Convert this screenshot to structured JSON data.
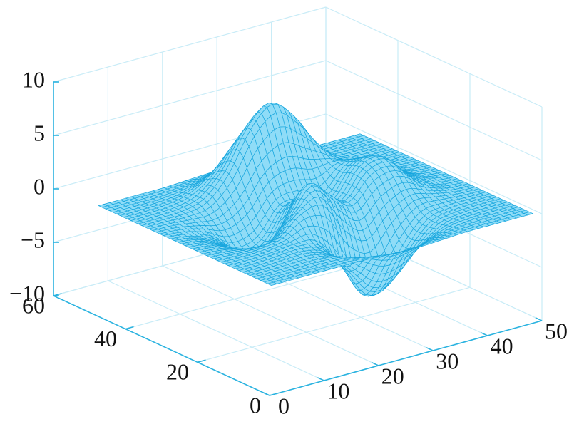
{
  "chart_data": {
    "type": "surface",
    "x": [
      1,
      5,
      9,
      13,
      17,
      21,
      25,
      29,
      33,
      37,
      41,
      45,
      49
    ],
    "y": [
      1,
      5,
      9,
      13,
      17,
      21,
      25,
      29,
      33,
      37,
      41,
      45,
      49
    ],
    "z": [
      [
        0,
        0,
        0,
        0,
        0,
        -0.1,
        -0.2,
        -0.2,
        -0.1,
        0,
        0,
        0,
        0
      ],
      [
        0,
        0,
        0,
        0,
        -0.2,
        -0.9,
        -1.6,
        -1.4,
        -0.7,
        -0.2,
        0,
        0,
        0
      ],
      [
        0,
        0,
        0.1,
        0.1,
        -0.6,
        -2.7,
        -4.8,
        -4.4,
        -2.1,
        -0.5,
        -0.1,
        0,
        0
      ],
      [
        0,
        0,
        0.1,
        0.3,
        0.1,
        -2.2,
        -5.7,
        -5.8,
        -2.6,
        -0.4,
        0,
        0,
        0
      ],
      [
        0,
        -0.1,
        -0.1,
        0.3,
        1.9,
        2.2,
        -0.7,
        -2.2,
        -0.3,
        0.9,
        0.5,
        0.1,
        0
      ],
      [
        0,
        -0.2,
        -0.8,
        -1.2,
        0.8,
        3.6,
        2.0,
        0.4,
        2.2,
        2.6,
        1.1,
        0.2,
        0
      ],
      [
        0,
        -0.3,
        -1.3,
        -2.8,
        -1.7,
        1.5,
        1.0,
        0.4,
        2.9,
        3.3,
        1.4,
        0.3,
        0
      ],
      [
        0,
        -0.3,
        -1.1,
        -2.5,
        -2.0,
        0.4,
        0.5,
        0.4,
        2.4,
        2.6,
        1.1,
        0.2,
        0
      ],
      [
        0,
        -0.1,
        -0.5,
        -0.9,
        0.2,
        2.8,
        3.7,
        2.9,
        2.4,
        1.6,
        0.6,
        0.1,
        0
      ],
      [
        0,
        0,
        0,
        0.5,
        2.6,
        6.2,
        8.0,
        6.3,
        3.3,
        1.2,
        0.3,
        0,
        0
      ],
      [
        0,
        0,
        0.1,
        0.6,
        2.1,
        4.6,
        5.9,
        4.6,
        2.2,
        0.7,
        0.1,
        0,
        0
      ],
      [
        0,
        0,
        0,
        0.2,
        0.7,
        1.5,
        1.9,
        1.5,
        0.7,
        0.2,
        0,
        0,
        0
      ],
      [
        0,
        0,
        0,
        0,
        0.1,
        0.2,
        0.3,
        0.2,
        0.1,
        0,
        0,
        0,
        0
      ]
    ],
    "color": "#8fdcf7",
    "edgecolor": "#1aa7de",
    "xlim": [
      0,
      50
    ],
    "xticks": [
      0,
      10,
      20,
      30,
      40,
      50
    ],
    "ylim": [
      0,
      60
    ],
    "yticks": [
      0,
      20,
      40,
      60
    ],
    "zlim": [
      -10,
      10
    ],
    "zticks": [
      {
        "value": -10,
        "label": "−10"
      },
      {
        "value": -5,
        "label": "−5"
      },
      0,
      5,
      10
    ],
    "grid": true
  }
}
